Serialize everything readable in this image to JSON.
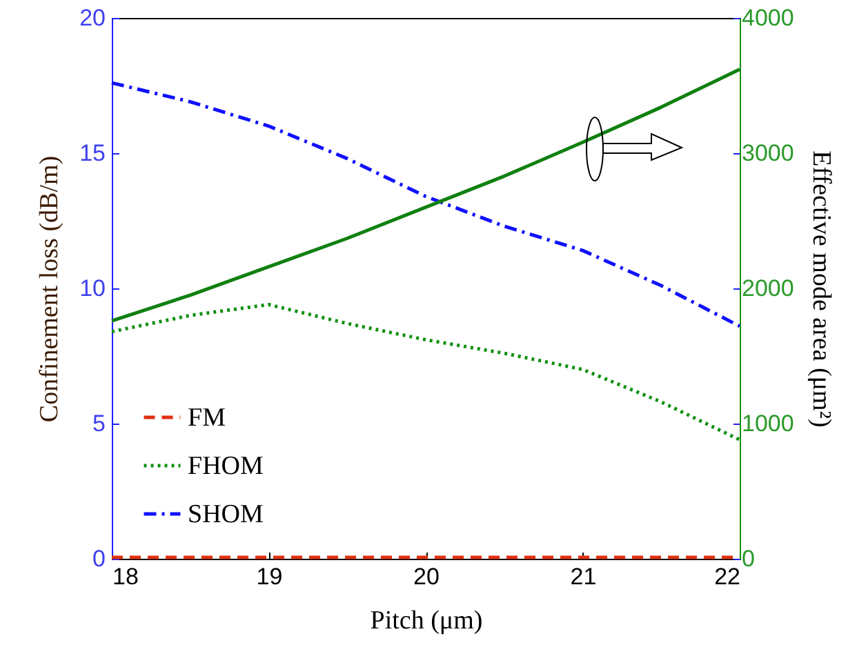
{
  "chart_data": {
    "type": "line",
    "xlabel": "Pitch (μm)",
    "ylabel": "Confinement loss (dB/m)",
    "y2label": "Effective mode area (μm²)",
    "x": [
      18,
      18.5,
      19,
      19.5,
      20,
      20.5,
      21,
      21.5,
      22
    ],
    "series": [
      {
        "name": "FM",
        "color": "#e03010",
        "line_style": "dashed",
        "values": [
          0.05,
          0.05,
          0.05,
          0.05,
          0.05,
          0.05,
          0.05,
          0.05,
          0.05
        ]
      },
      {
        "name": "FHOM",
        "color": "#109010",
        "line_style": "dotted",
        "values": [
          8.4,
          9.0,
          9.4,
          8.7,
          8.1,
          7.6,
          7.0,
          5.8,
          4.4
        ]
      },
      {
        "name": "SHOM",
        "color": "#1010ff",
        "line_style": "dashdot",
        "values": [
          17.6,
          16.9,
          16.0,
          14.8,
          13.4,
          12.3,
          11.4,
          10.1,
          8.6
        ]
      },
      {
        "color": "#108010",
        "line_style": "solid",
        "axis": "y2",
        "values": [
          1760,
          1950,
          2160,
          2370,
          2600,
          2830,
          3080,
          3340,
          3620
        ]
      }
    ],
    "xlim": [
      18,
      22
    ],
    "xticks": [
      18,
      19,
      20,
      21,
      22
    ],
    "ylim": [
      0,
      20
    ],
    "yticks": [
      0,
      5,
      10,
      15,
      20
    ],
    "y2lim": [
      0,
      4000
    ],
    "y2ticks": [
      0,
      1000,
      2000,
      3000,
      4000
    ],
    "grid": false,
    "legend": "bottom left",
    "marker": "none"
  }
}
